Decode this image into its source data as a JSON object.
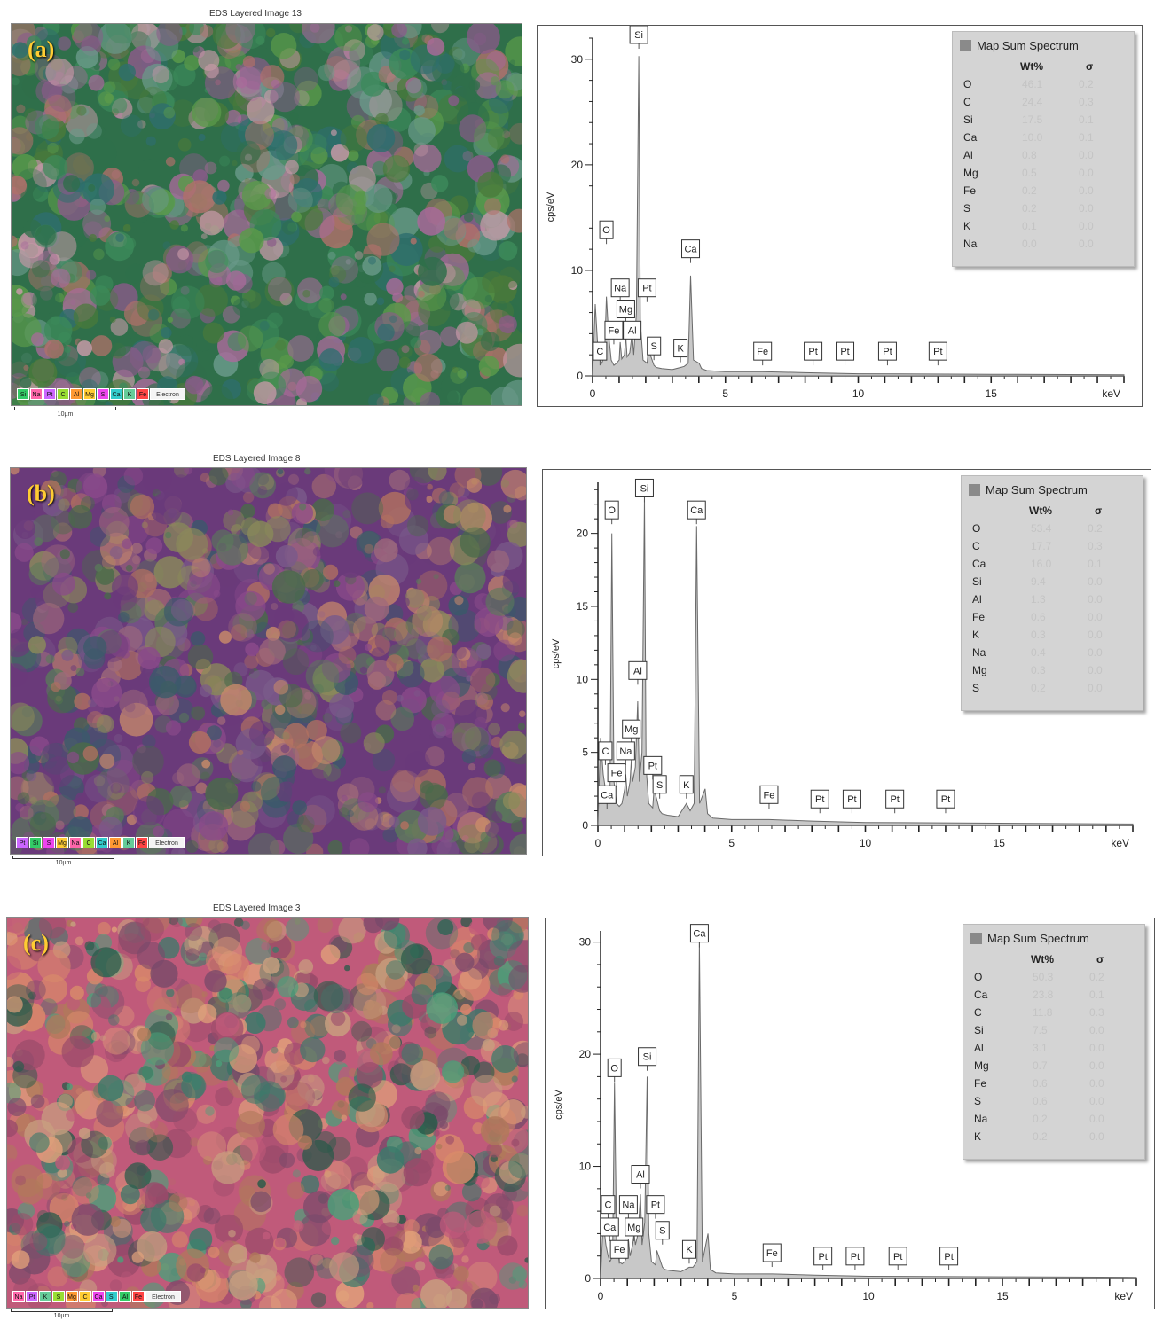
{
  "panels": [
    {
      "label": "(a)",
      "map": {
        "title": "EDS Layered Image 13",
        "layers": [
          {
            "label": "Si",
            "color": "#33cc66"
          },
          {
            "label": "Na",
            "color": "#ff66aa"
          },
          {
            "label": "Pt",
            "color": "#cc66ff"
          },
          {
            "label": "C",
            "color": "#99dd33"
          },
          {
            "label": "Al",
            "color": "#ff9933"
          },
          {
            "label": "Mg",
            "color": "#ffcc33"
          },
          {
            "label": "S",
            "color": "#ee44ee"
          },
          {
            "label": "Ca",
            "color": "#33cccc"
          },
          {
            "label": "K",
            "color": "#66cc99"
          },
          {
            "label": "Fe",
            "color": "#ff4444"
          }
        ],
        "electron_label": "Electron",
        "scale_label": "10µm",
        "palette": [
          "#2f6f4a",
          "#3c8a5a",
          "#5a9a4a",
          "#2e6e6e",
          "#a86a9a",
          "#c89aa8",
          "#4a7a3a",
          "#b0706a",
          "#6a9a8a",
          "#8a5a8a"
        ]
      },
      "spectrum": {
        "box_title": "Map Sum Spectrum",
        "col_wt": "Wt%",
        "col_sigma": "σ",
        "elements": [
          {
            "el": "O",
            "wt": "46.1",
            "sigma": "0.2"
          },
          {
            "el": "C",
            "wt": "24.4",
            "sigma": "0.3"
          },
          {
            "el": "Si",
            "wt": "17.5",
            "sigma": "0.1"
          },
          {
            "el": "Ca",
            "wt": "10.0",
            "sigma": "0.1"
          },
          {
            "el": "Al",
            "wt": "0.8",
            "sigma": "0.0"
          },
          {
            "el": "Mg",
            "wt": "0.5",
            "sigma": "0.0"
          },
          {
            "el": "Fe",
            "wt": "0.2",
            "sigma": "0.0"
          },
          {
            "el": "S",
            "wt": "0.2",
            "sigma": "0.0"
          },
          {
            "el": "K",
            "wt": "0.1",
            "sigma": "0.0"
          },
          {
            "el": "Na",
            "wt": "0.0",
            "sigma": "0.0"
          }
        ]
      }
    },
    {
      "label": "(b)",
      "map": {
        "title": "EDS Layered Image 8",
        "layers": [
          {
            "label": "Pt",
            "color": "#cc66ff"
          },
          {
            "label": "Si",
            "color": "#33cc66"
          },
          {
            "label": "S",
            "color": "#ee44ee"
          },
          {
            "label": "Mg",
            "color": "#ffcc33"
          },
          {
            "label": "Na",
            "color": "#ff66aa"
          },
          {
            "label": "C",
            "color": "#99dd33"
          },
          {
            "label": "Ca",
            "color": "#33cccc"
          },
          {
            "label": "Al",
            "color": "#ff9933"
          },
          {
            "label": "K",
            "color": "#66cc99"
          },
          {
            "label": "Fe",
            "color": "#ff4444"
          }
        ],
        "electron_label": "Electron",
        "scale_label": "10µm",
        "palette": [
          "#6a3a7a",
          "#8a4a8a",
          "#b07060",
          "#c88a6a",
          "#4a6a4a",
          "#5a7a5a",
          "#7a5a8a",
          "#3a5a6a",
          "#a06a7a",
          "#8a8a5a"
        ]
      },
      "spectrum": {
        "box_title": "Map Sum Spectrum",
        "col_wt": "Wt%",
        "col_sigma": "σ",
        "elements": [
          {
            "el": "O",
            "wt": "53.4",
            "sigma": "0.2"
          },
          {
            "el": "C",
            "wt": "17.7",
            "sigma": "0.3"
          },
          {
            "el": "Ca",
            "wt": "16.0",
            "sigma": "0.1"
          },
          {
            "el": "Si",
            "wt": "9.4",
            "sigma": "0.0"
          },
          {
            "el": "Al",
            "wt": "1.3",
            "sigma": "0.0"
          },
          {
            "el": "Fe",
            "wt": "0.6",
            "sigma": "0.0"
          },
          {
            "el": "K",
            "wt": "0.3",
            "sigma": "0.0"
          },
          {
            "el": "Na",
            "wt": "0.4",
            "sigma": "0.0"
          },
          {
            "el": "Mg",
            "wt": "0.3",
            "sigma": "0.0"
          },
          {
            "el": "S",
            "wt": "0.2",
            "sigma": "0.0"
          }
        ]
      }
    },
    {
      "label": "(c)",
      "map": {
        "title": "EDS Layered Image 3",
        "layers": [
          {
            "label": "Na",
            "color": "#ff66aa"
          },
          {
            "label": "Pt",
            "color": "#cc66ff"
          },
          {
            "label": "K",
            "color": "#66cc99"
          },
          {
            "label": "S",
            "color": "#99dd33"
          },
          {
            "label": "Mg",
            "color": "#ff9933"
          },
          {
            "label": "C",
            "color": "#ffcc33"
          },
          {
            "label": "Ca",
            "color": "#ee44ee"
          },
          {
            "label": "Si",
            "color": "#33cccc"
          },
          {
            "label": "Al",
            "color": "#33cc66"
          },
          {
            "label": "Fe",
            "color": "#ff4444"
          }
        ],
        "electron_label": "Electron",
        "scale_label": "10µm",
        "palette": [
          "#c05a7a",
          "#d88a6a",
          "#2a5a4a",
          "#4aa07a",
          "#9a4a6a",
          "#e0a07a",
          "#3a7a6a",
          "#b07a5a",
          "#7a4a6a",
          "#c8a080"
        ]
      },
      "spectrum": {
        "box_title": "Map Sum Spectrum",
        "col_wt": "Wt%",
        "col_sigma": "σ",
        "elements": [
          {
            "el": "O",
            "wt": "50.3",
            "sigma": "0.2"
          },
          {
            "el": "Ca",
            "wt": "23.8",
            "sigma": "0.1"
          },
          {
            "el": "C",
            "wt": "11.8",
            "sigma": "0.3"
          },
          {
            "el": "Si",
            "wt": "7.5",
            "sigma": "0.0"
          },
          {
            "el": "Al",
            "wt": "3.1",
            "sigma": "0.0"
          },
          {
            "el": "Mg",
            "wt": "0.7",
            "sigma": "0.0"
          },
          {
            "el": "Fe",
            "wt": "0.6",
            "sigma": "0.0"
          },
          {
            "el": "S",
            "wt": "0.6",
            "sigma": "0.0"
          },
          {
            "el": "Na",
            "wt": "0.2",
            "sigma": "0.0"
          },
          {
            "el": "K",
            "wt": "0.2",
            "sigma": "0.0"
          }
        ]
      }
    }
  ],
  "chart_data": [
    {
      "type": "line",
      "panel": "(a)",
      "xlabel": "keV",
      "ylabel": "cps/eV",
      "xlim": [
        0,
        20
      ],
      "ylim": [
        0,
        32
      ],
      "xticks": [
        0,
        5,
        10,
        15
      ],
      "yticks": [
        0,
        10,
        20,
        30
      ],
      "series": [
        {
          "x": [
            0,
            0.1,
            0.2,
            0.28,
            0.35,
            0.45,
            0.52,
            0.6,
            0.7,
            0.8,
            0.9,
            1.0,
            1.04,
            1.1,
            1.2,
            1.25,
            1.3,
            1.4,
            1.49,
            1.55,
            1.65,
            1.74,
            1.8,
            1.9,
            2.05,
            2.1,
            2.2,
            2.31,
            2.4,
            2.6,
            3.0,
            3.31,
            3.45,
            3.6,
            3.69,
            3.8,
            4.01,
            4.1,
            4.3,
            5,
            6.4,
            8,
            10,
            15,
            20
          ],
          "y": [
            0,
            6.8,
            2.5,
            1.5,
            1.2,
            2.0,
            7.5,
            4.0,
            1.5,
            1.0,
            1.2,
            1.5,
            3.2,
            1.6,
            2.0,
            3.8,
            1.8,
            2.2,
            4.0,
            2.0,
            6.0,
            30.3,
            5.0,
            1.5,
            1.2,
            2.5,
            1.8,
            1.0,
            0.8,
            0.7,
            0.6,
            0.8,
            0.9,
            1.2,
            9.5,
            1.5,
            1.2,
            0.7,
            0.5,
            0.4,
            0.4,
            0.3,
            0.2,
            0.15,
            0.1
          ]
        }
      ],
      "peaks": [
        {
          "label": "Si",
          "x": 1.74,
          "y": 31.5
        },
        {
          "label": "O",
          "x": 0.52,
          "y": 13.0
        },
        {
          "label": "Ca",
          "x": 3.69,
          "y": 11.2
        },
        {
          "label": "Na",
          "x": 1.04,
          "y": 7.5
        },
        {
          "label": "Pt",
          "x": 2.05,
          "y": 7.5
        },
        {
          "label": "Mg",
          "x": 1.25,
          "y": 5.5
        },
        {
          "label": "Fe",
          "x": 0.8,
          "y": 3.5
        },
        {
          "label": "Al",
          "x": 1.49,
          "y": 3.5
        },
        {
          "label": "C",
          "x": 0.28,
          "y": 1.5
        },
        {
          "label": "S",
          "x": 2.31,
          "y": 2.0
        },
        {
          "label": "K",
          "x": 3.31,
          "y": 1.8
        },
        {
          "label": "Fe",
          "x": 6.4,
          "y": 1.5
        },
        {
          "label": "Pt",
          "x": 8.3,
          "y": 1.5
        },
        {
          "label": "Pt",
          "x": 9.5,
          "y": 1.5
        },
        {
          "label": "Pt",
          "x": 11.1,
          "y": 1.5
        },
        {
          "label": "Pt",
          "x": 13.0,
          "y": 1.5
        }
      ]
    },
    {
      "type": "line",
      "panel": "(b)",
      "xlabel": "keV",
      "ylabel": "cps/eV",
      "xlim": [
        0,
        20
      ],
      "ylim": [
        0,
        23.5
      ],
      "xticks": [
        0,
        5,
        10,
        15
      ],
      "yticks": [
        0,
        5,
        10,
        15,
        20
      ],
      "series": [
        {
          "x": [
            0,
            0.1,
            0.2,
            0.28,
            0.35,
            0.45,
            0.52,
            0.6,
            0.7,
            0.8,
            0.9,
            1.0,
            1.04,
            1.1,
            1.2,
            1.25,
            1.3,
            1.4,
            1.49,
            1.55,
            1.65,
            1.74,
            1.8,
            1.9,
            2.05,
            2.1,
            2.2,
            2.31,
            2.4,
            2.6,
            3.0,
            3.31,
            3.45,
            3.6,
            3.69,
            3.8,
            4.01,
            4.1,
            4.3,
            5,
            6.4,
            8,
            10,
            15,
            20
          ],
          "y": [
            0,
            6.0,
            3.5,
            2.5,
            1.5,
            2.0,
            20.0,
            3.0,
            1.5,
            1.3,
            1.5,
            2.5,
            3.5,
            2.0,
            3.0,
            4.5,
            3.0,
            4.0,
            8.5,
            3.0,
            5.0,
            22.5,
            4.0,
            1.5,
            1.2,
            2.5,
            1.8,
            1.0,
            0.8,
            0.7,
            0.6,
            1.5,
            1.0,
            1.5,
            20.5,
            1.5,
            2.5,
            0.8,
            0.5,
            0.4,
            0.4,
            0.3,
            0.2,
            0.15,
            0.1
          ]
        }
      ],
      "peaks": [
        {
          "label": "Si",
          "x": 1.74,
          "y": 22.5
        },
        {
          "label": "O",
          "x": 0.52,
          "y": 21.0
        },
        {
          "label": "Ca",
          "x": 3.69,
          "y": 21.0
        },
        {
          "label": "Al",
          "x": 1.49,
          "y": 10.0
        },
        {
          "label": "Mg",
          "x": 1.25,
          "y": 6.0
        },
        {
          "label": "C",
          "x": 0.28,
          "y": 4.5
        },
        {
          "label": "Na",
          "x": 1.04,
          "y": 4.5
        },
        {
          "label": "Pt",
          "x": 2.05,
          "y": 3.5
        },
        {
          "label": "Fe",
          "x": 0.7,
          "y": 3.0
        },
        {
          "label": "Ca",
          "x": 0.34,
          "y": 1.5
        },
        {
          "label": "S",
          "x": 2.31,
          "y": 2.2
        },
        {
          "label": "K",
          "x": 3.31,
          "y": 2.2
        },
        {
          "label": "Fe",
          "x": 6.4,
          "y": 1.5
        },
        {
          "label": "Pt",
          "x": 8.3,
          "y": 1.2
        },
        {
          "label": "Pt",
          "x": 9.5,
          "y": 1.2
        },
        {
          "label": "Pt",
          "x": 11.1,
          "y": 1.2
        },
        {
          "label": "Pt",
          "x": 13.0,
          "y": 1.2
        }
      ]
    },
    {
      "type": "line",
      "panel": "(c)",
      "xlabel": "keV",
      "ylabel": "cps/eV",
      "xlim": [
        0,
        20
      ],
      "ylim": [
        0,
        31
      ],
      "xticks": [
        0,
        5,
        10,
        15
      ],
      "yticks": [
        0,
        10,
        20,
        30
      ],
      "series": [
        {
          "x": [
            0,
            0.1,
            0.2,
            0.28,
            0.35,
            0.45,
            0.52,
            0.6,
            0.7,
            0.8,
            0.9,
            1.0,
            1.04,
            1.1,
            1.2,
            1.25,
            1.3,
            1.4,
            1.49,
            1.55,
            1.65,
            1.74,
            1.8,
            1.9,
            2.05,
            2.1,
            2.2,
            2.31,
            2.4,
            2.6,
            3.0,
            3.31,
            3.45,
            3.6,
            3.69,
            3.8,
            4.01,
            4.1,
            4.3,
            5,
            6.4,
            8,
            10,
            15,
            20
          ],
          "y": [
            0,
            5.0,
            3.0,
            2.0,
            1.5,
            2.0,
            17.5,
            3.0,
            1.5,
            1.3,
            1.5,
            2.0,
            3.5,
            2.0,
            3.0,
            4.0,
            3.0,
            4.0,
            7.5,
            3.0,
            5.0,
            18.0,
            4.0,
            1.5,
            1.2,
            2.5,
            1.8,
            1.0,
            0.8,
            0.7,
            0.6,
            1.0,
            1.0,
            1.5,
            30.0,
            1.5,
            4.0,
            0.8,
            0.5,
            0.4,
            0.4,
            0.3,
            0.2,
            0.15,
            0.1
          ]
        }
      ],
      "peaks": [
        {
          "label": "Ca",
          "x": 3.69,
          "y": 30.0
        },
        {
          "label": "Si",
          "x": 1.74,
          "y": 19.0
        },
        {
          "label": "O",
          "x": 0.52,
          "y": 18.0
        },
        {
          "label": "Al",
          "x": 1.49,
          "y": 8.5
        },
        {
          "label": "C",
          "x": 0.28,
          "y": 5.8
        },
        {
          "label": "Na",
          "x": 1.04,
          "y": 5.8
        },
        {
          "label": "Pt",
          "x": 2.05,
          "y": 5.8
        },
        {
          "label": "Ca",
          "x": 0.34,
          "y": 3.8
        },
        {
          "label": "Mg",
          "x": 1.25,
          "y": 3.8
        },
        {
          "label": "S",
          "x": 2.31,
          "y": 3.5
        },
        {
          "label": "Fe",
          "x": 0.7,
          "y": 1.8
        },
        {
          "label": "K",
          "x": 3.31,
          "y": 1.8
        },
        {
          "label": "Fe",
          "x": 6.4,
          "y": 1.5
        },
        {
          "label": "Pt",
          "x": 8.3,
          "y": 1.2
        },
        {
          "label": "Pt",
          "x": 9.5,
          "y": 1.2
        },
        {
          "label": "Pt",
          "x": 11.1,
          "y": 1.2
        },
        {
          "label": "Pt",
          "x": 13.0,
          "y": 1.2
        }
      ]
    }
  ]
}
